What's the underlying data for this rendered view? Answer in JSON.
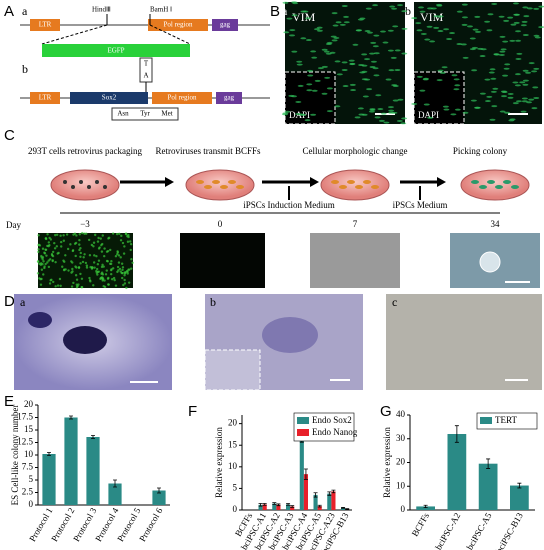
{
  "figure": {
    "a": {
      "label": "A",
      "sub_a": "a",
      "ltr": "LTR",
      "hind": "HindⅢ",
      "bam": "BamH Ⅰ",
      "pol": "Pol region",
      "gag": "gag",
      "egfp": "EGFP",
      "sub_b": "b",
      "ltr2": "LTR",
      "sox2": "Sox2",
      "pol2": "Pol region",
      "gag2": "gag",
      "t": "T",
      "a2": "A",
      "asn": "Asn",
      "tyr": "Tyr",
      "met": "Met"
    },
    "b": {
      "label": "B",
      "sub_a": "a",
      "vim_a": "VIM",
      "dapi_a": "DAPI",
      "sub_b": "b",
      "vim_b": "VIM",
      "dapi_b": "DAPI"
    },
    "c": {
      "label": "C",
      "steps": [
        "293T cells retrovirus packaging",
        "Retroviruses transmit BCFFs",
        "Cellular morphologic change",
        "Picking colony"
      ],
      "media": [
        "iPSCs Induction Medium",
        "iPSCs Medium"
      ],
      "day": "Day",
      "days": [
        "−3",
        "0",
        "7",
        "34"
      ]
    },
    "d": {
      "label": "D",
      "subs": [
        "a",
        "b",
        "c"
      ]
    }
  },
  "chart_data": [
    {
      "type": "bar",
      "panel_label": "E",
      "y_label": "ES Cell-like colony number",
      "categories": [
        "Protocol 1",
        "Protocol 2",
        "Protocol 3",
        "Protocol 4",
        "Protocol 5",
        "Protocol 6"
      ],
      "values": [
        10.2,
        17.5,
        13.6,
        4.3,
        0,
        2.9
      ],
      "errors": [
        0.3,
        0.3,
        0.3,
        0.7,
        0,
        0.5
      ],
      "color": "#2a8a86",
      "ylim": [
        0,
        20
      ],
      "yticks": [
        0,
        2.5,
        5,
        7.5,
        10,
        12.5,
        15,
        17.5,
        20
      ]
    },
    {
      "type": "bar",
      "panel_label": "F",
      "y_label": "Relative expression",
      "categories": [
        "BCFFs",
        "bciPSC-A1",
        "bciPSC-A2",
        "bciPSC-A3",
        "bciPSC-A4",
        "bciPSC-A5",
        "bciPSC-A23",
        "bciPSC-B13"
      ],
      "series": [
        {
          "name": "Endo Sox2",
          "color": "#2a8a86",
          "values": [
            0,
            1.2,
            1.5,
            1.3,
            18,
            3.5,
            3.8,
            0.5
          ],
          "errors": [
            0,
            0.3,
            0.2,
            0.2,
            2.3,
            0.5,
            0.4,
            0.1
          ]
        },
        {
          "name": "Endo Nanog",
          "color": "#e8202a",
          "values": [
            0,
            1.3,
            1.2,
            0.8,
            8.3,
            0.9,
            4.3,
            0.2
          ],
          "errors": [
            0,
            0.2,
            0.2,
            0.2,
            1.2,
            0.2,
            0.3,
            0.1
          ]
        }
      ],
      "ylim": [
        0,
        22
      ],
      "yticks": [
        0,
        5,
        10,
        15,
        20
      ],
      "legend": "upper right"
    },
    {
      "type": "bar",
      "panel_label": "G",
      "y_label": "Relative expression",
      "categories": [
        "BCFFs",
        "bciPSC-A2",
        "bciPSC-A5",
        "bciPSC-B13"
      ],
      "series": [
        {
          "name": "TERT",
          "color": "#2a8a86",
          "values": [
            1.5,
            32,
            19.5,
            10.3
          ],
          "errors": [
            0.5,
            3.5,
            2,
            1
          ]
        }
      ],
      "ylim": [
        0,
        40
      ],
      "yticks": [
        0,
        10,
        20,
        30,
        40
      ],
      "legend": "upper right"
    }
  ]
}
